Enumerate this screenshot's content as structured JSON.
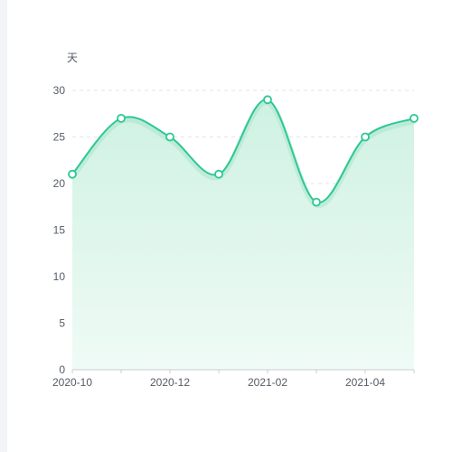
{
  "chart_data": {
    "type": "area",
    "y_unit_label": "天",
    "x": [
      "2020-10",
      "2020-11",
      "2020-12",
      "2021-01",
      "2021-02",
      "2021-03",
      "2021-04",
      "2021-05"
    ],
    "x_tick_labels": [
      "2020-10",
      "2020-12",
      "2021-02",
      "2021-04"
    ],
    "series": [
      {
        "values": [
          21,
          27,
          25,
          21,
          29,
          18,
          25,
          27
        ]
      }
    ],
    "ylim": [
      0,
      30
    ],
    "y_ticks": [
      0,
      5,
      10,
      15,
      20,
      25,
      30
    ],
    "grid": true,
    "smooth": true,
    "colors": {
      "line": "#2ec795",
      "shadow": "#9fe3c8",
      "area_top": "#c9f0df",
      "area_bottom": "#eefaf5",
      "grid": "#e3e6ea",
      "axis": "#c9ccd2",
      "point_fill": "#ffffff"
    }
  }
}
